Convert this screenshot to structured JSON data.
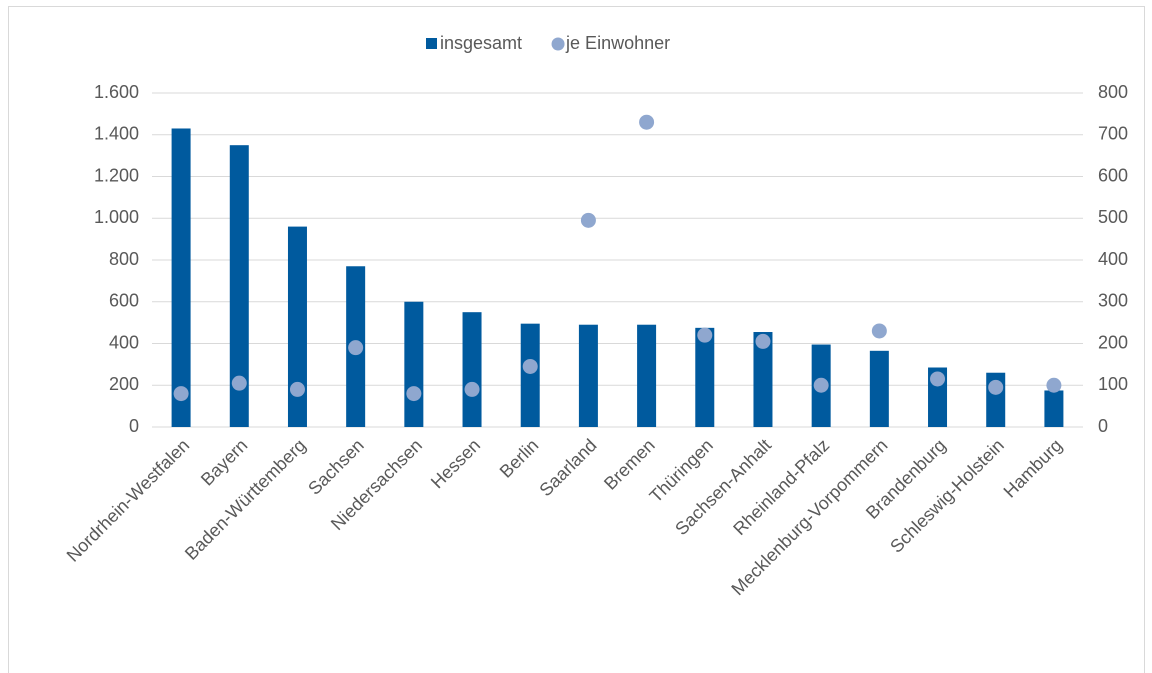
{
  "chart_data": {
    "type": "bar",
    "categories": [
      "Nordrhein-Westfalen",
      "Bayern",
      "Baden-Württemberg",
      "Sachsen",
      "Niedersachsen",
      "Hessen",
      "Berlin",
      "Saarland",
      "Bremen",
      "Thüringen",
      "Sachsen-Anhalt",
      "Rheinland-Pfalz",
      "Mecklenburg-Vorpommern",
      "Brandenburg",
      "Schleswig-Holstein",
      "Hamburg"
    ],
    "series": [
      {
        "name": "insgesamt",
        "type": "bar",
        "color": "#005a9e",
        "values": [
          1430,
          1350,
          960,
          770,
          600,
          550,
          495,
          490,
          490,
          475,
          455,
          395,
          365,
          285,
          260,
          175
        ]
      },
      {
        "name": "je Einwohner",
        "type": "scatter",
        "axis": "y2",
        "color": "#8fa7cf",
        "values": [
          80,
          105,
          90,
          190,
          80,
          90,
          145,
          495,
          730,
          220,
          205,
          100,
          230,
          115,
          95,
          100
        ]
      }
    ],
    "ylim": [
      0,
      1600
    ],
    "yticks": [
      0,
      200,
      400,
      600,
      800,
      {
        "value": 1000,
        "label": "1.000"
      },
      {
        "value": 1200,
        "label": "1.200"
      },
      {
        "value": 1400,
        "label": "1.400"
      },
      {
        "value": 1600,
        "label": "1.600"
      }
    ],
    "y2lim": [
      0,
      800
    ],
    "y2ticks": [
      0,
      100,
      200,
      300,
      400,
      500,
      600,
      700,
      800
    ],
    "grid": true,
    "legend": "top"
  }
}
